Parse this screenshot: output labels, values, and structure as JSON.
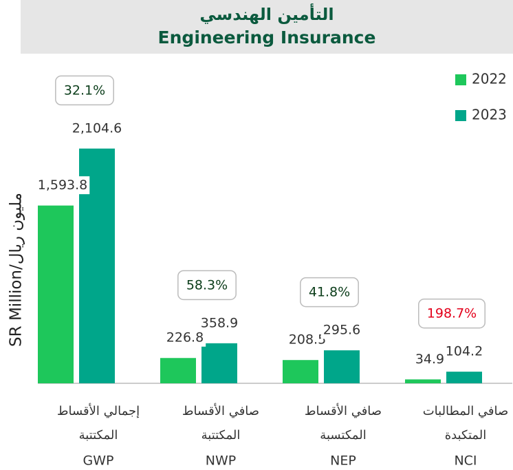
{
  "chart_data": {
    "type": "bar",
    "title_ar": "التأمين الهندسي",
    "title": "Engineering Insurance",
    "y_label": "SR Million/مليون ريال",
    "categories": [
      "GWP",
      "NWP",
      "NEP",
      "NCI"
    ],
    "category_labels_ar": [
      [
        "إجمالي الأقساط",
        "المكتتبة"
      ],
      [
        "صافي الأقساط",
        "المكتتبة"
      ],
      [
        "صافي الأقساط",
        "المكتسبة"
      ],
      [
        "صافي المطالبات",
        "المتكبدة"
      ]
    ],
    "series": [
      {
        "name": "2022",
        "color": "#1ec75b",
        "values": [
          1593.8,
          226.8,
          208.5,
          34.9
        ],
        "value_labels": [
          "1,593.8",
          "226.8",
          "208.5",
          "34.9"
        ]
      },
      {
        "name": "2023",
        "color": "#00a68a",
        "values": [
          2104.6,
          358.9,
          295.6,
          104.2
        ],
        "value_labels": [
          "2,104.6",
          "358.9",
          "295.6",
          "104.2"
        ]
      }
    ],
    "growth": [
      32.1,
      58.3,
      41.8,
      198.7
    ],
    "growth_labels": [
      "32.1%",
      "58.3%",
      "41.8%",
      "198.7%"
    ],
    "growth_colors": [
      "#0b3d1a",
      "#0b3d1a",
      "#0b3d1a",
      "#e3001b"
    ],
    "ylim": [
      0,
      2400
    ],
    "yticks": [],
    "grid": false,
    "legend": "upper right"
  }
}
